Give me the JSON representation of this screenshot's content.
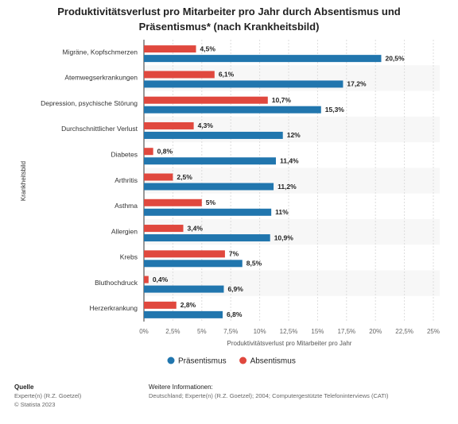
{
  "chart_data": {
    "type": "bar",
    "orientation": "horizontal",
    "title": "Produktivitätsverlust pro Mitarbeiter pro Jahr durch Absentismus und Präsentismus* (nach Krankheitsbild)",
    "y_label": "Krankheitsbild",
    "x_label": "Produktivitätsverlust pro Mitarbeiter pro Jahr",
    "categories": [
      "Migräne, Kopfschmerzen",
      "Atemwegserkrankungen",
      "Depression, psychische Störung",
      "Durchschnittlicher Verlust",
      "Diabetes",
      "Arthritis",
      "Asthma",
      "Allergien",
      "Krebs",
      "Bluthochdruck",
      "Herzerkrankung"
    ],
    "series": [
      {
        "name": "Absentismus",
        "color": "#e0483e",
        "values": [
          4.5,
          6.1,
          10.7,
          4.3,
          0.8,
          2.5,
          5,
          3.4,
          7,
          0.4,
          2.8
        ],
        "value_labels": [
          "4,5%",
          "6,1%",
          "10,7%",
          "4,3%",
          "0,8%",
          "2,5%",
          "5%",
          "3,4%",
          "7%",
          "0,4%",
          "2,8%"
        ]
      },
      {
        "name": "Präsentismus",
        "color": "#2176ae",
        "values": [
          20.5,
          17.2,
          15.3,
          12,
          11.4,
          11.2,
          11,
          10.9,
          8.5,
          6.9,
          6.8
        ],
        "value_labels": [
          "20,5%",
          "17,2%",
          "15,3%",
          "12%",
          "11,4%",
          "11,2%",
          "11%",
          "10,9%",
          "8,5%",
          "6,9%",
          "6,8%"
        ]
      }
    ],
    "xlim": [
      0,
      25
    ],
    "xticks": [
      {
        "value": 0,
        "label": "0%"
      },
      {
        "value": 2.5,
        "label": "2,5%"
      },
      {
        "value": 5,
        "label": "5%"
      },
      {
        "value": 7.5,
        "label": "7,5%"
      },
      {
        "value": 10,
        "label": "10%"
      },
      {
        "value": 12.5,
        "label": "12,5%"
      },
      {
        "value": 15,
        "label": "15%"
      },
      {
        "value": 17.5,
        "label": "17,5%"
      },
      {
        "value": 20,
        "label": "20%"
      },
      {
        "value": 22.5,
        "label": "22,5%"
      },
      {
        "value": 25,
        "label": "25%"
      }
    ],
    "grid": true,
    "legend": "bottom",
    "source_title": "Quelle",
    "source": "Experte(n) (R.Z. Goetzel)",
    "copyright": "© Statista 2023",
    "info_title": "Weitere Informationen:",
    "info": "Deutschland; Experte(n) (R.Z. Goetzel); 2004; Computergestützte Telefoninterviews (CATI)"
  }
}
